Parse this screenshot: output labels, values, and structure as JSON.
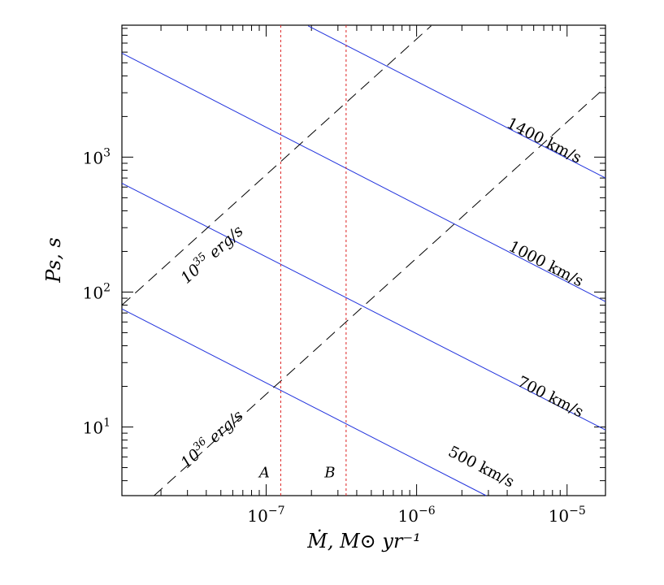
{
  "chart_data": {
    "type": "line",
    "title": "",
    "xlabel": "Ṁ,  M⊙ yr⁻¹",
    "ylabel": "Ps, s",
    "x_scale": "log",
    "y_scale": "log",
    "xlim": [
      1.1e-08,
      1.8e-05
    ],
    "ylim": [
      3.1,
      9500
    ],
    "x_ticks": [
      {
        "value": 1e-07,
        "base": "10",
        "exp": "−7"
      },
      {
        "value": 1e-06,
        "base": "10",
        "exp": "−6"
      },
      {
        "value": 1e-05,
        "base": "10",
        "exp": "−5"
      }
    ],
    "y_ticks": [
      {
        "value": 10,
        "base": "10",
        "exp": "1"
      },
      {
        "value": 100,
        "base": "10",
        "exp": "2"
      },
      {
        "value": 1000,
        "base": "10",
        "exp": "3"
      }
    ],
    "series": [
      {
        "name": "500 km/s",
        "style": "solid",
        "color": "#2233dd",
        "x": [
          1.1e-08,
          2.9e-06
        ],
        "y": [
          75,
          3.1
        ],
        "label": {
          "x": 2.6e-06,
          "y": 4.7
        }
      },
      {
        "name": "700 km/s",
        "style": "solid",
        "color": "#2233dd",
        "x": [
          1.1e-08,
          1.8e-05
        ],
        "y": [
          640,
          9.5
        ],
        "label": {
          "x": 7.5e-06,
          "y": 15.5
        }
      },
      {
        "name": "1000 km/s",
        "style": "solid",
        "color": "#2233dd",
        "x": [
          1.1e-08,
          1.8e-05
        ],
        "y": [
          5900,
          85
        ],
        "label": {
          "x": 7e-06,
          "y": 150
        }
      },
      {
        "name": "1400 km/s",
        "style": "solid",
        "color": "#2233dd",
        "x": [
          1.9e-07,
          1.8e-05
        ],
        "y": [
          9400,
          700
        ],
        "label": {
          "x": 6.8e-06,
          "y": 1230
        }
      },
      {
        "name": "10^35 erg/s",
        "style": "dashed",
        "color": "#000000",
        "x": [
          1.1e-08,
          1.25e-06
        ],
        "y": [
          80,
          9400
        ],
        "label": {
          "x": 4.6e-08,
          "y": 178,
          "base": "10",
          "exp": "35",
          "unit": " erg/s"
        }
      },
      {
        "name": "10^36 erg/s",
        "style": "dashed",
        "color": "#000000",
        "x": [
          1.8e-08,
          1.8e-05
        ],
        "y": [
          3.1,
          3300
        ],
        "label": {
          "x": 4.6e-08,
          "y": 7.6,
          "base": "10",
          "exp": "36",
          "unit": " erg/s"
        }
      }
    ],
    "vertical_markers": [
      {
        "name": "A",
        "x": 1.25e-07,
        "color": "#dd2222",
        "style": "dotted",
        "label_y": 4.6
      },
      {
        "name": "B",
        "x": 3.4e-07,
        "color": "#dd2222",
        "style": "dotted",
        "label_y": 4.6
      }
    ],
    "grid": false,
    "legend": "none"
  }
}
